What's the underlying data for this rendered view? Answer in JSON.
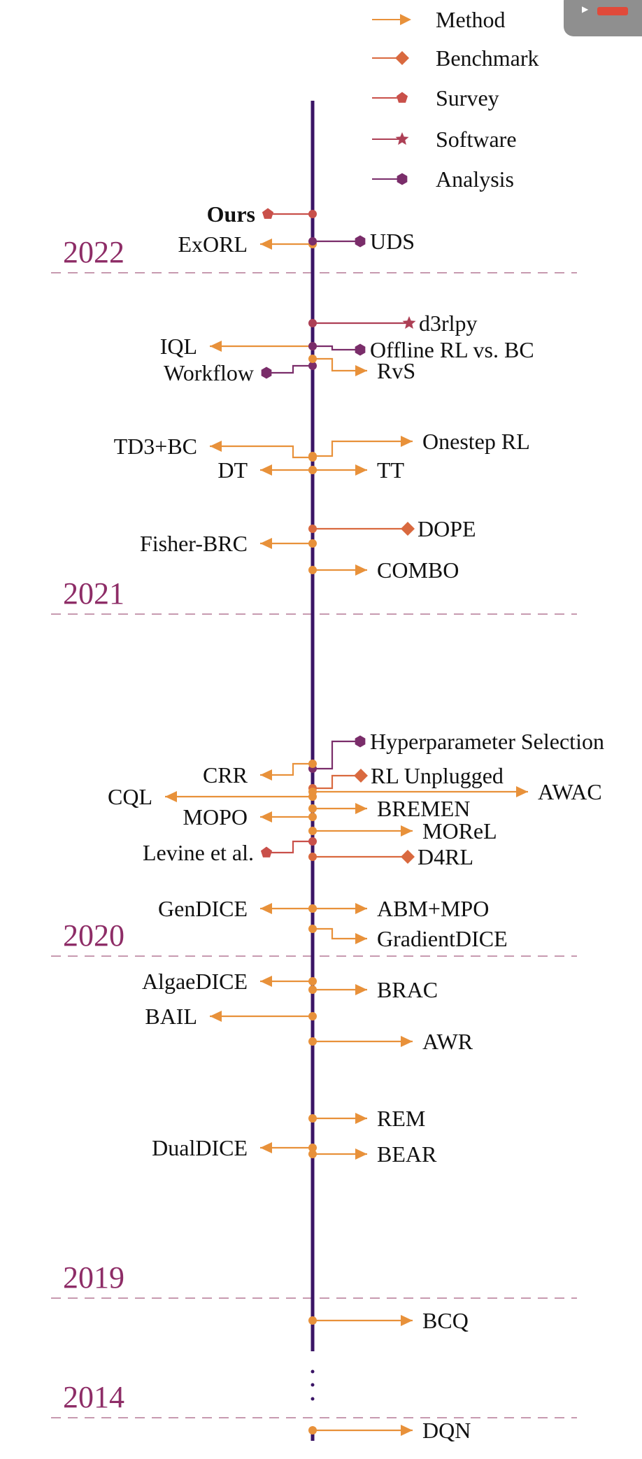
{
  "colors": {
    "timeline": "#3b1566",
    "method": "#e8913a",
    "benchmark": "#d9693f",
    "survey": "#c9504a",
    "software": "#ad3f55",
    "analysis": "#7a2d6a",
    "year": "#8e2d67",
    "grid": "#c79ab0"
  },
  "legend": [
    {
      "type": "method",
      "label": "Method",
      "marker": "arrow-icon"
    },
    {
      "type": "benchmark",
      "label": "Benchmark",
      "marker": "diamond-icon"
    },
    {
      "type": "survey",
      "label": "Survey",
      "marker": "pentagon-icon"
    },
    {
      "type": "software",
      "label": "Software",
      "marker": "star-icon"
    },
    {
      "type": "analysis",
      "label": "Analysis",
      "marker": "hexagon-icon"
    }
  ],
  "years": [
    "2022",
    "2021",
    "2020",
    "2019",
    "2014"
  ],
  "ellipsis": "⋮",
  "entries": [
    {
      "label": "Ours",
      "type": "survey",
      "side": "left",
      "bold": true
    },
    {
      "label": "ExORL",
      "type": "method",
      "side": "left"
    },
    {
      "label": "UDS",
      "type": "analysis",
      "side": "right"
    },
    {
      "label": "d3rlpy",
      "type": "software",
      "side": "right"
    },
    {
      "label": "IQL",
      "type": "method",
      "side": "left"
    },
    {
      "label": "Offline RL vs. BC",
      "type": "analysis",
      "side": "right"
    },
    {
      "label": "Workflow",
      "type": "analysis",
      "side": "left"
    },
    {
      "label": "RvS",
      "type": "method",
      "side": "right"
    },
    {
      "label": "TD3+BC",
      "type": "method",
      "side": "left"
    },
    {
      "label": "Onestep RL",
      "type": "method",
      "side": "right"
    },
    {
      "label": "DT",
      "type": "method",
      "side": "left"
    },
    {
      "label": "TT",
      "type": "method",
      "side": "right"
    },
    {
      "label": "DOPE",
      "type": "benchmark",
      "side": "right"
    },
    {
      "label": "Fisher-BRC",
      "type": "method",
      "side": "left"
    },
    {
      "label": "COMBO",
      "type": "method",
      "side": "right"
    },
    {
      "label": "Hyperparameter Selection",
      "type": "analysis",
      "side": "right"
    },
    {
      "label": "CRR",
      "type": "method",
      "side": "left"
    },
    {
      "label": "RL Unplugged",
      "type": "benchmark",
      "side": "right"
    },
    {
      "label": "CQL",
      "type": "method",
      "side": "left"
    },
    {
      "label": "AWAC",
      "type": "method",
      "side": "right"
    },
    {
      "label": "BREMEN",
      "type": "method",
      "side": "right"
    },
    {
      "label": "MOPO",
      "type": "method",
      "side": "left"
    },
    {
      "label": "MOReL",
      "type": "method",
      "side": "right"
    },
    {
      "label": "Levine et al.",
      "type": "survey",
      "side": "left"
    },
    {
      "label": "D4RL",
      "type": "benchmark",
      "side": "right"
    },
    {
      "label": "GenDICE",
      "type": "method",
      "side": "left"
    },
    {
      "label": "ABM+MPO",
      "type": "method",
      "side": "right"
    },
    {
      "label": "GradientDICE",
      "type": "method",
      "side": "right"
    },
    {
      "label": "AlgaeDICE",
      "type": "method",
      "side": "left"
    },
    {
      "label": "BRAC",
      "type": "method",
      "side": "right"
    },
    {
      "label": "BAIL",
      "type": "method",
      "side": "left"
    },
    {
      "label": "AWR",
      "type": "method",
      "side": "right"
    },
    {
      "label": "REM",
      "type": "method",
      "side": "right"
    },
    {
      "label": "DualDICE",
      "type": "method",
      "side": "left"
    },
    {
      "label": "BEAR",
      "type": "method",
      "side": "right"
    },
    {
      "label": "BCQ",
      "type": "method",
      "side": "right"
    },
    {
      "label": "DQN",
      "type": "method",
      "side": "right"
    }
  ]
}
